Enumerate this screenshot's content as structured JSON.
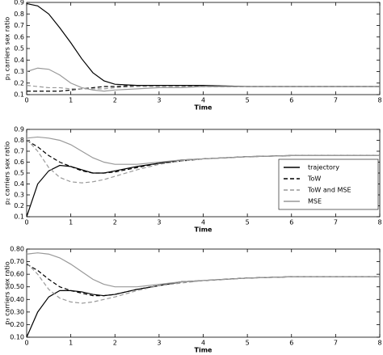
{
  "chart_data": [
    {
      "type": "line",
      "x_label": "Time",
      "y_label": "p₁ carriers sex ratio",
      "xlim": [
        0,
        8
      ],
      "xticks": [
        0,
        1,
        2,
        3,
        4,
        5,
        6,
        7,
        8
      ],
      "ylim": [
        0.1,
        0.9
      ],
      "yticks": [
        0.1,
        0.2,
        0.3,
        0.4,
        0.5,
        0.6,
        0.7,
        0.8,
        0.9
      ],
      "x": [
        0,
        0.25,
        0.5,
        0.75,
        1,
        1.25,
        1.5,
        1.75,
        2,
        2.5,
        3,
        3.5,
        4,
        5,
        6,
        7,
        8
      ],
      "series": [
        {
          "color": "#000000",
          "dashed": false,
          "values": [
            0.89,
            0.87,
            0.8,
            0.68,
            0.55,
            0.41,
            0.29,
            0.22,
            0.19,
            0.18,
            0.18,
            0.18,
            0.18,
            0.17,
            0.17,
            0.17,
            0.17
          ]
        },
        {
          "color": "#000000",
          "dashed": true,
          "values": [
            0.13,
            0.13,
            0.13,
            0.13,
            0.14,
            0.15,
            0.16,
            0.17,
            0.17,
            0.18,
            0.18,
            0.18,
            0.17,
            0.17,
            0.17,
            0.17,
            0.17
          ]
        },
        {
          "color": "#999999",
          "dashed": true,
          "values": [
            0.18,
            0.17,
            0.16,
            0.16,
            0.15,
            0.15,
            0.15,
            0.15,
            0.16,
            0.17,
            0.17,
            0.17,
            0.17,
            0.17,
            0.17,
            0.17,
            0.17
          ]
        },
        {
          "color": "#999999",
          "dashed": false,
          "values": [
            0.3,
            0.33,
            0.32,
            0.27,
            0.2,
            0.16,
            0.14,
            0.13,
            0.14,
            0.15,
            0.16,
            0.16,
            0.17,
            0.17,
            0.17,
            0.17,
            0.17
          ]
        }
      ]
    },
    {
      "type": "line",
      "x_label": "Time",
      "y_label": "p₂ carriers sex ratio",
      "legend": "center right",
      "xlim": [
        0,
        8
      ],
      "xticks": [
        0,
        1,
        2,
        3,
        4,
        5,
        6,
        7,
        8
      ],
      "ylim": [
        0.1,
        0.9
      ],
      "yticks": [
        0.1,
        0.2,
        0.3,
        0.4,
        0.5,
        0.6,
        0.7,
        0.8,
        0.9
      ],
      "x": [
        0,
        0.25,
        0.5,
        0.75,
        1,
        1.25,
        1.5,
        1.75,
        2,
        2.5,
        3,
        3.5,
        4,
        5,
        6,
        7,
        8
      ],
      "series": [
        {
          "name": "trajectory",
          "color": "#000000",
          "dashed": false,
          "values": [
            0.1,
            0.4,
            0.52,
            0.57,
            0.56,
            0.53,
            0.5,
            0.5,
            0.52,
            0.56,
            0.59,
            0.62,
            0.63,
            0.65,
            0.66,
            0.66,
            0.66
          ]
        },
        {
          "name": "ToW",
          "color": "#000000",
          "dashed": true,
          "values": [
            0.8,
            0.74,
            0.66,
            0.6,
            0.56,
            0.52,
            0.5,
            0.5,
            0.51,
            0.55,
            0.59,
            0.61,
            0.63,
            0.65,
            0.66,
            0.66,
            0.66
          ]
        },
        {
          "name": "ToW and MSE",
          "color": "#999999",
          "dashed": true,
          "values": [
            0.81,
            0.7,
            0.55,
            0.46,
            0.42,
            0.41,
            0.42,
            0.44,
            0.47,
            0.53,
            0.58,
            0.61,
            0.63,
            0.65,
            0.66,
            0.66,
            0.66
          ]
        },
        {
          "name": "MSE",
          "color": "#999999",
          "dashed": false,
          "values": [
            0.82,
            0.83,
            0.82,
            0.8,
            0.76,
            0.7,
            0.64,
            0.6,
            0.58,
            0.58,
            0.6,
            0.62,
            0.63,
            0.65,
            0.66,
            0.66,
            0.66
          ]
        }
      ]
    },
    {
      "type": "line",
      "x_label": "Time",
      "y_label": "p₃ carriers sex ratio",
      "xlim": [
        0,
        8
      ],
      "xticks": [
        0,
        1,
        2,
        3,
        4,
        5,
        6,
        7,
        8
      ],
      "ylim": [
        0.1,
        0.8
      ],
      "yticks": [
        {
          "value": 0.1,
          "label": "0.10"
        },
        {
          "value": 0.2,
          "label": "0.20"
        },
        {
          "value": 0.3,
          "label": "0.30"
        },
        {
          "value": 0.4,
          "label": "0.40"
        },
        {
          "value": 0.5,
          "label": "0.50"
        },
        {
          "value": 0.6,
          "label": "0.60"
        },
        {
          "value": 0.7,
          "label": "0.70"
        },
        {
          "value": 0.8,
          "label": "0.80"
        }
      ],
      "x": [
        0,
        0.25,
        0.5,
        0.75,
        1,
        1.25,
        1.5,
        1.75,
        2,
        2.5,
        3,
        3.5,
        4,
        5,
        6,
        7,
        8
      ],
      "series": [
        {
          "color": "#000000",
          "dashed": false,
          "values": [
            0.1,
            0.3,
            0.42,
            0.47,
            0.47,
            0.46,
            0.44,
            0.43,
            0.44,
            0.48,
            0.51,
            0.54,
            0.55,
            0.57,
            0.58,
            0.58,
            0.58
          ]
        },
        {
          "color": "#000000",
          "dashed": true,
          "values": [
            0.68,
            0.63,
            0.56,
            0.5,
            0.47,
            0.45,
            0.43,
            0.43,
            0.44,
            0.48,
            0.51,
            0.54,
            0.55,
            0.57,
            0.58,
            0.58,
            0.58
          ]
        },
        {
          "color": "#999999",
          "dashed": true,
          "values": [
            0.69,
            0.6,
            0.48,
            0.41,
            0.38,
            0.37,
            0.38,
            0.4,
            0.42,
            0.47,
            0.51,
            0.53,
            0.55,
            0.57,
            0.58,
            0.58,
            0.58
          ]
        },
        {
          "color": "#999999",
          "dashed": false,
          "values": [
            0.76,
            0.77,
            0.76,
            0.73,
            0.68,
            0.62,
            0.56,
            0.52,
            0.5,
            0.5,
            0.52,
            0.54,
            0.55,
            0.57,
            0.58,
            0.58,
            0.58
          ]
        }
      ]
    }
  ]
}
